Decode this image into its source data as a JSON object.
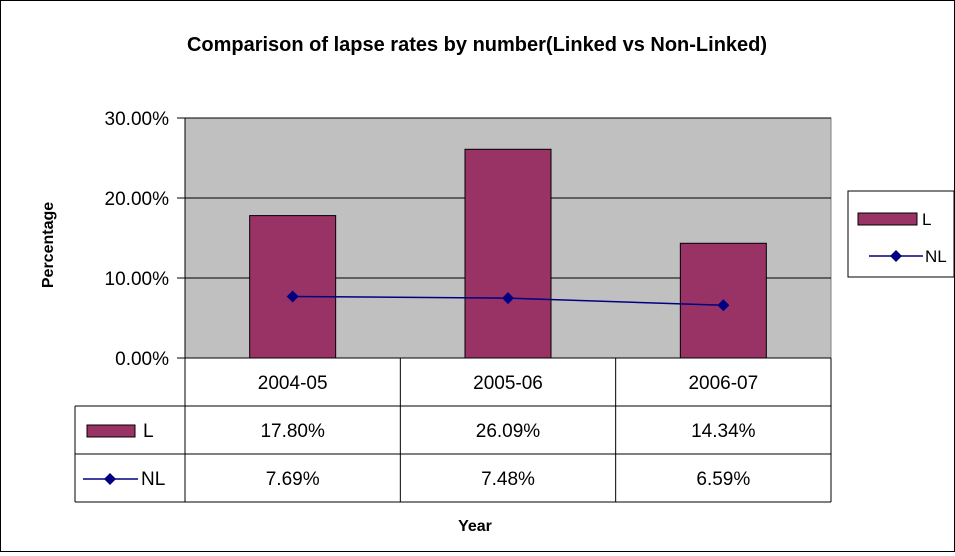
{
  "chart_data": {
    "type": "bar",
    "title": "Comparison of lapse rates by number(Linked vs Non-Linked)",
    "xlabel": "Year",
    "ylabel": "Percentage",
    "categories": [
      "2004-05",
      "2005-06",
      "2006-07"
    ],
    "ylim": [
      0,
      0.3
    ],
    "yticks": [
      0,
      0.1,
      0.2,
      0.3
    ],
    "ytick_labels": [
      "0.00%",
      "10.00%",
      "20.00%",
      "30.00%"
    ],
    "series": [
      {
        "name": "L",
        "type": "bar",
        "color": "#993366",
        "values": [
          0.178,
          0.2609,
          0.1434
        ],
        "labels": [
          "17.80%",
          "26.09%",
          "14.34%"
        ]
      },
      {
        "name": "NL",
        "type": "line",
        "color": "#000080",
        "values": [
          0.0769,
          0.0748,
          0.0659
        ],
        "labels": [
          "7.69%",
          "7.48%",
          "6.59%"
        ]
      }
    ],
    "plot_background": "#c0c0c0",
    "legend_position": "right",
    "data_table": true
  }
}
